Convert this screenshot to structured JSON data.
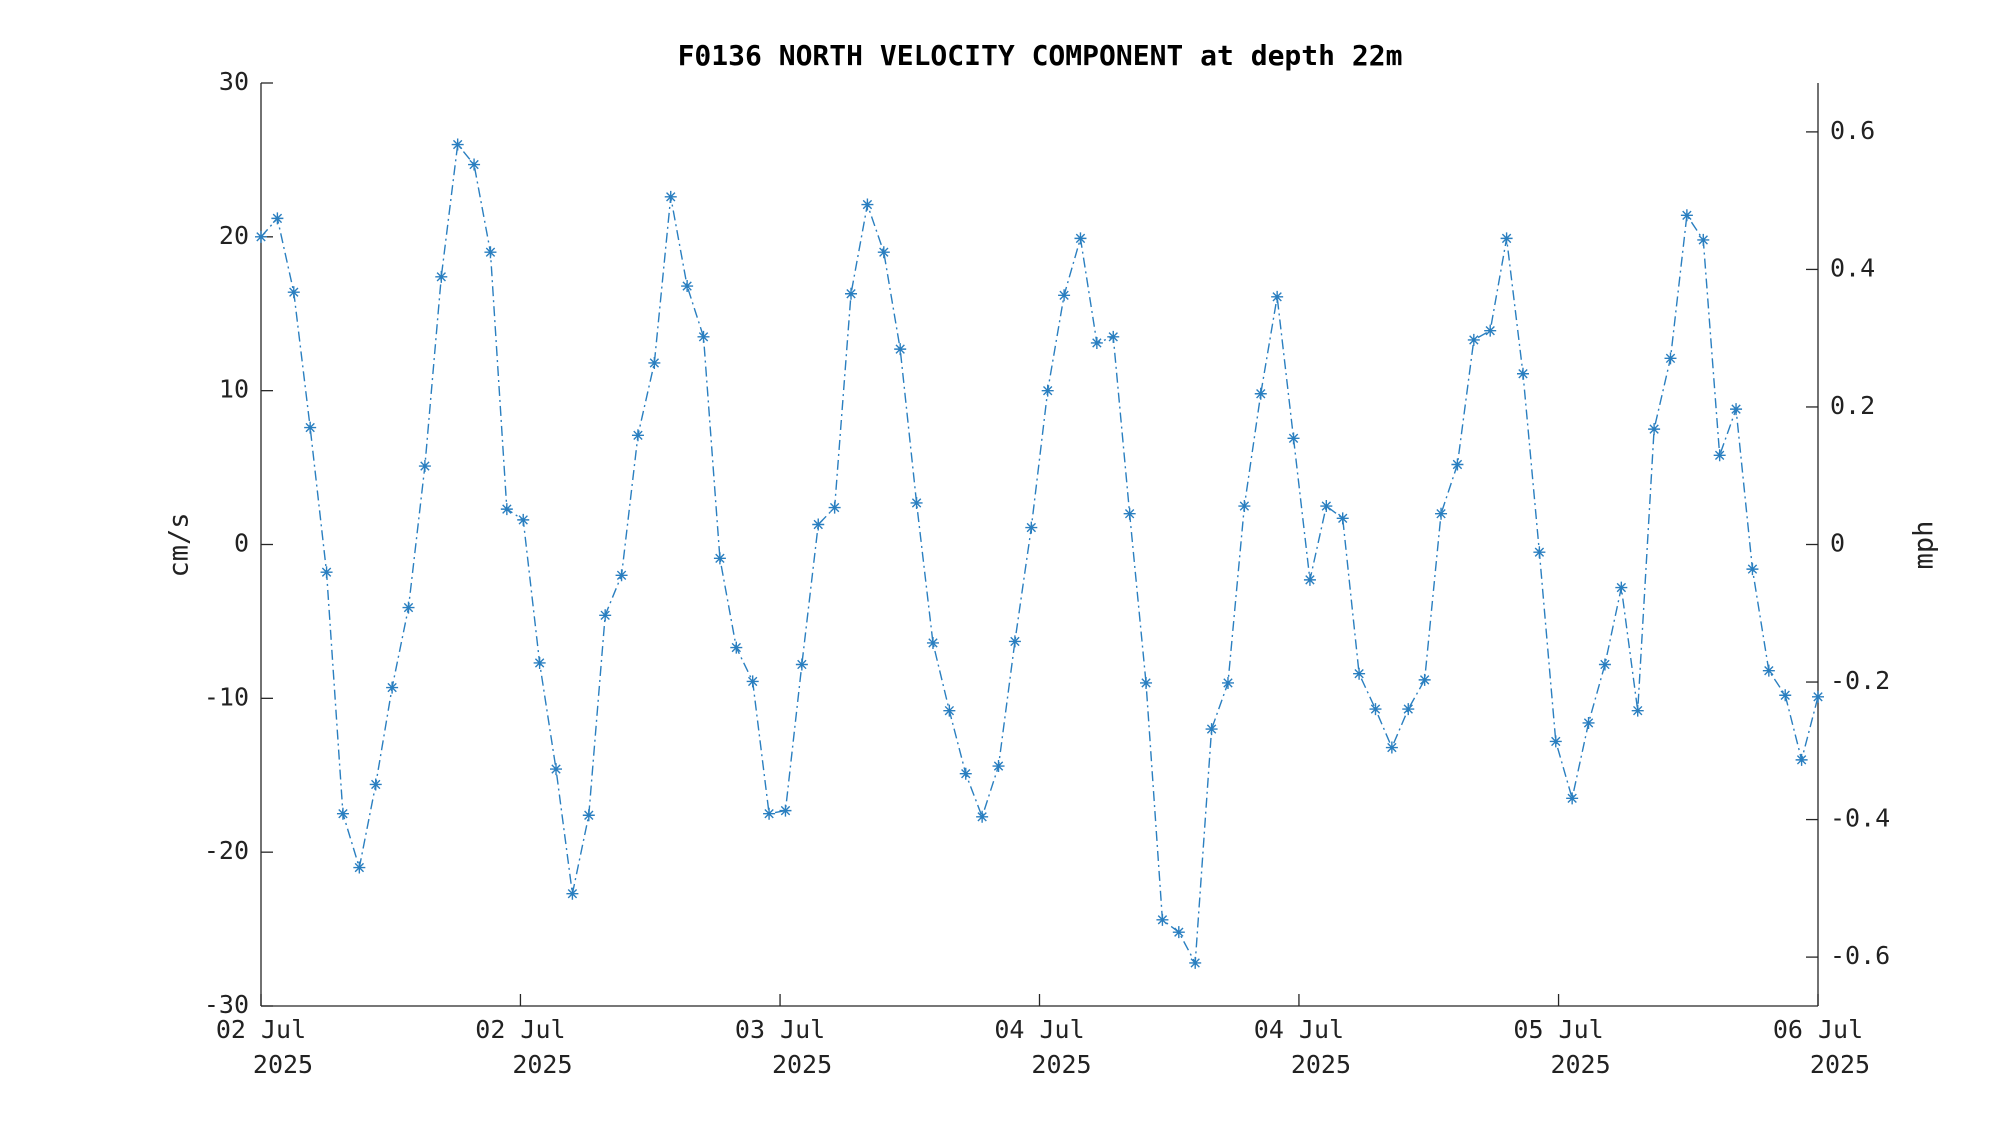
{
  "chart_data": {
    "type": "line",
    "title": "F0136 NORTH VELOCITY COMPONENT at depth 22m",
    "y_label": "cm/s",
    "y2_label": "mph",
    "x": [
      0,
      1,
      2,
      3,
      4,
      5,
      6,
      7,
      8,
      9,
      10,
      11,
      12,
      13,
      14,
      15,
      16,
      17,
      18,
      19,
      20,
      21,
      22,
      23,
      24,
      25,
      26,
      27,
      28,
      29,
      30,
      31,
      32,
      33,
      34,
      35,
      36,
      37,
      38,
      39,
      40,
      41,
      42,
      43,
      44,
      45,
      46,
      47,
      48,
      49,
      50,
      51,
      52,
      53,
      54,
      55,
      56,
      57,
      58,
      59,
      60,
      61,
      62,
      63,
      64,
      65,
      66,
      67,
      68,
      69,
      70,
      71,
      72,
      73,
      74,
      75,
      76,
      77,
      78,
      79,
      80,
      81,
      82,
      83,
      84,
      85,
      86,
      87,
      88,
      89,
      90,
      91,
      92,
      93,
      94,
      95
    ],
    "series": [
      {
        "name": "north velocity",
        "color": "#2a7fc0",
        "values": [
          20,
          21.2,
          16.4,
          7.6,
          -1.8,
          -17.5,
          -21,
          -15.6,
          -9.3,
          -4.1,
          5.1,
          17.4,
          26,
          24.7,
          19,
          2.3,
          1.6,
          -7.7,
          -14.6,
          -22.7,
          -17.6,
          -4.6,
          -2,
          7.1,
          11.8,
          22.6,
          16.8,
          13.5,
          -0.9,
          -6.7,
          -8.9,
          -17.5,
          -17.3,
          -7.8,
          1.3,
          2.4,
          16.3,
          22.1,
          19,
          12.7,
          2.7,
          -6.4,
          -10.8,
          -14.9,
          -17.7,
          -14.4,
          -6.3,
          1.1,
          10,
          16.2,
          19.9,
          13.1,
          13.5,
          2,
          -9,
          -24.4,
          -25.2,
          -27.2,
          -12,
          -9,
          2.5,
          9.8,
          16.1,
          6.9,
          -2.3,
          2.5,
          1.7,
          -8.4,
          -10.7,
          -13.2,
          -10.7,
          -8.8,
          2,
          5.2,
          13.3,
          13.9,
          19.9,
          11.1,
          -0.5,
          -12.8,
          -16.5,
          -11.6,
          -7.8,
          -2.8,
          -10.8,
          7.5,
          12.1,
          21.4,
          19.8,
          5.8,
          8.8,
          -1.6,
          -8.2,
          -9.8,
          -14,
          -9.9
        ]
      }
    ],
    "xlim": [
      0,
      95
    ],
    "xticks": [
      {
        "value": 0,
        "label": [
          "02 Jul",
          "2025"
        ]
      },
      {
        "value": 15.83,
        "label": [
          "02 Jul",
          "2025"
        ]
      },
      {
        "value": 31.67,
        "label": [
          "03 Jul",
          "2025"
        ]
      },
      {
        "value": 47.5,
        "label": [
          "04 Jul",
          "2025"
        ]
      },
      {
        "value": 63.33,
        "label": [
          "04 Jul",
          "2025"
        ]
      },
      {
        "value": 79.17,
        "label": [
          "05 Jul",
          "2025"
        ]
      },
      {
        "value": 95,
        "label": [
          "06 Jul",
          "2025"
        ]
      }
    ],
    "ylim": [
      -30,
      30
    ],
    "yticks": [
      -30,
      -20,
      -10,
      0,
      10,
      20,
      30
    ],
    "y2lim": [
      -0.6711,
      0.6711
    ],
    "y2ticks": [
      -0.6,
      -0.4,
      -0.2,
      0,
      0.2,
      0.4,
      0.6
    ]
  }
}
